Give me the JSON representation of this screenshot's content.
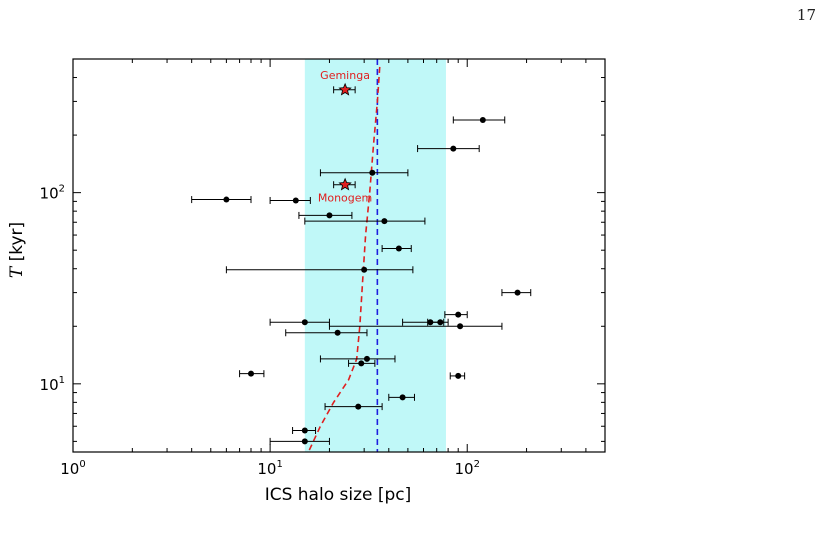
{
  "page": {
    "number": "17"
  },
  "chart_data": {
    "type": "scatter",
    "title": "",
    "xlabel": "ICS halo size [pc]",
    "ylabel": "T [kyr]",
    "xscale": "log",
    "yscale": "log",
    "xlim": [
      1,
      500
    ],
    "ylim": [
      4.4,
      500
    ],
    "xticks": [
      {
        "value": 1,
        "base": "10",
        "exp": "0"
      },
      {
        "value": 10,
        "base": "10",
        "exp": "1"
      },
      {
        "value": 100,
        "base": "10",
        "exp": "2"
      }
    ],
    "yticks": [
      {
        "value": 10,
        "base": "10",
        "exp": "1"
      },
      {
        "value": 100,
        "base": "10",
        "exp": "2"
      }
    ],
    "grid": false,
    "shaded_band": {
      "x_range": [
        15,
        78
      ],
      "color": "#c0f8f8"
    },
    "reference_line": {
      "x": 35,
      "color": "#1f1fe0",
      "style": "dashed"
    },
    "trend_curve": {
      "color": "#e01f1f",
      "style": "dashed",
      "points": [
        [
          15.8,
          4.5
        ],
        [
          18,
          6
        ],
        [
          21,
          8
        ],
        [
          25,
          10.5
        ],
        [
          27.5,
          13.5
        ],
        [
          28.5,
          20
        ],
        [
          29.5,
          35
        ],
        [
          30.5,
          60
        ],
        [
          32,
          100
        ],
        [
          33.5,
          180
        ],
        [
          35,
          300
        ],
        [
          36,
          460
        ]
      ]
    },
    "series": [
      {
        "marker": "circle",
        "color": "#000000",
        "points": [
          {
            "x": 120,
            "y": 240,
            "xerr": [
              85,
              155
            ]
          },
          {
            "x": 85,
            "y": 170,
            "xerr": [
              56,
              115
            ]
          },
          {
            "x": 33,
            "y": 127,
            "xerr": [
              18,
              50
            ]
          },
          {
            "x": 6,
            "y": 92,
            "xerr": [
              4,
              8
            ]
          },
          {
            "x": 13.5,
            "y": 91,
            "xerr": [
              10,
              16
            ]
          },
          {
            "x": 20,
            "y": 76,
            "xerr": [
              14,
              26
            ]
          },
          {
            "x": 38,
            "y": 71,
            "xerr": [
              15,
              61
            ]
          },
          {
            "x": 45,
            "y": 51,
            "xerr": [
              37,
              52
            ]
          },
          {
            "x": 30,
            "y": 39.5,
            "xerr": [
              6,
              53
            ]
          },
          {
            "x": 180,
            "y": 30,
            "xerr": [
              150,
              210
            ]
          },
          {
            "x": 90,
            "y": 23,
            "xerr": [
              77,
              100
            ]
          },
          {
            "x": 65,
            "y": 21,
            "xerr": [
              47,
              76
            ]
          },
          {
            "x": 73,
            "y": 21,
            "xerr": [
              63,
              80
            ]
          },
          {
            "x": 92,
            "y": 20,
            "xerr": [
              20,
              150
            ]
          },
          {
            "x": 15,
            "y": 21,
            "xerr": [
              10,
              20
            ]
          },
          {
            "x": 22,
            "y": 18.5,
            "xerr": [
              12,
              31
            ]
          },
          {
            "x": 31,
            "y": 13.5,
            "xerr": [
              18,
              43
            ]
          },
          {
            "x": 29,
            "y": 12.8,
            "xerr": [
              25,
              34
            ]
          },
          {
            "x": 8,
            "y": 11.3,
            "xerr": [
              7,
              9.3
            ]
          },
          {
            "x": 90,
            "y": 11,
            "xerr": [
              82,
              97
            ]
          },
          {
            "x": 47,
            "y": 8.5,
            "xerr": [
              40,
              54
            ]
          },
          {
            "x": 28,
            "y": 7.6,
            "xerr": [
              19,
              37
            ]
          },
          {
            "x": 15,
            "y": 5.7,
            "xerr": [
              13,
              17
            ]
          },
          {
            "x": 15,
            "y": 5.0,
            "xerr": [
              10,
              20
            ]
          }
        ]
      },
      {
        "marker": "star",
        "color": "#e02020",
        "points": [
          {
            "x": 24,
            "y": 345,
            "xerr": [
              21,
              27
            ],
            "label": "Geminga"
          },
          {
            "x": 24,
            "y": 110,
            "xerr": [
              21,
              27
            ],
            "label": "Monogem"
          }
        ]
      }
    ],
    "annotations_color": "#e02020"
  }
}
